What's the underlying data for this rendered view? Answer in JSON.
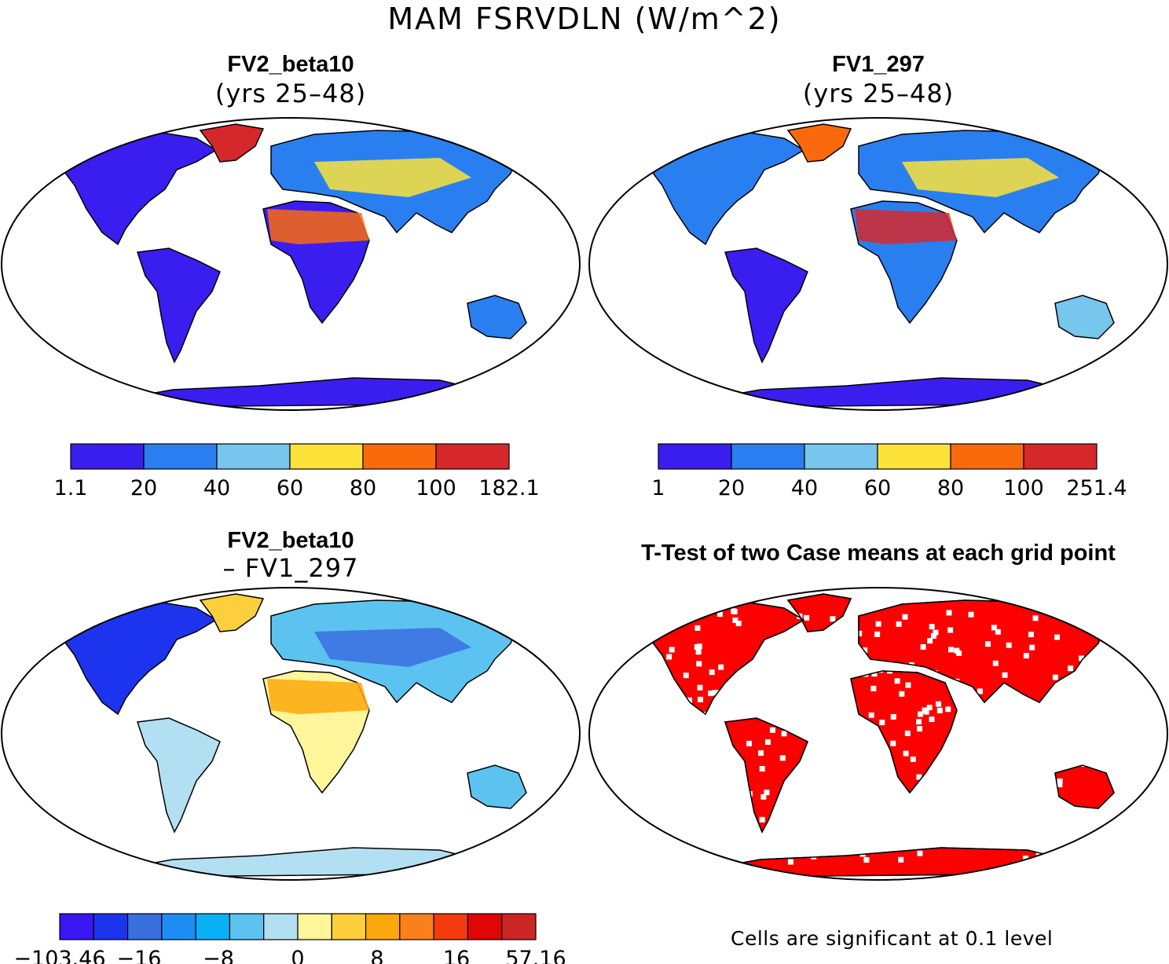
{
  "figure": {
    "title": "MAM FSRVDLN (W/m^2)",
    "footnote": "Cells are significant at 0.1 level"
  },
  "panels": [
    {
      "title": "FV2_beta10",
      "subtitle": "(yrs 25–48)",
      "colorbar": {
        "colors": [
          "#3a1ef0",
          "#2a7ff0",
          "#76c6ee",
          "#fde23a",
          "#fa6a0c",
          "#d6282b"
        ],
        "labels": [
          "1.1",
          "20",
          "40",
          "60",
          "80",
          "100",
          "182.1"
        ]
      }
    },
    {
      "title": "FV1_297",
      "subtitle": "(yrs 25–48)",
      "colorbar": {
        "colors": [
          "#3a1ef0",
          "#2a7ff0",
          "#76c6ee",
          "#fde23a",
          "#fa6a0c",
          "#d6282b"
        ],
        "labels": [
          "1",
          "20",
          "40",
          "60",
          "80",
          "100",
          "251.4"
        ]
      }
    },
    {
      "title": "FV2_beta10",
      "subtitle": "– FV1_297",
      "colorbar": {
        "colors": [
          "#3a16f2",
          "#1c34ee",
          "#3a6fe0",
          "#1e8cf5",
          "#0ab0f5",
          "#5cc3f0",
          "#b3dff2",
          "#fff59a",
          "#fecf3c",
          "#fba80c",
          "#f9801a",
          "#f53a0e",
          "#e00606",
          "#cc2525"
        ],
        "labels": [
          "−103.46",
          "−16",
          "−8",
          "0",
          "8",
          "16",
          "57.16"
        ]
      }
    },
    {
      "title": "T-Test of two Case means at each grid point"
    }
  ]
}
